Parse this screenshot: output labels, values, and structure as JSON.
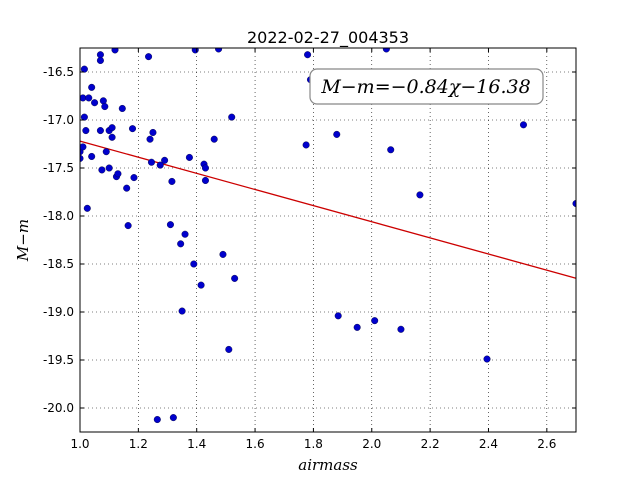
{
  "chart_data": {
    "type": "scatter",
    "title": "2022-02-27_004353",
    "xlabel": "airmass",
    "ylabel": "M−m",
    "xlim": [
      1.0,
      2.7
    ],
    "ylim": [
      -16.25,
      -20.25
    ],
    "y_inverted": true,
    "grid": true,
    "x_ticks": [
      "1.0",
      "1.2",
      "1.4",
      "1.6",
      "1.8",
      "2.0",
      "2.2",
      "2.4",
      "2.6"
    ],
    "y_ticks": [
      "-16.5",
      "-17.0",
      "-17.5",
      "-18.0",
      "-18.5",
      "-19.0",
      "-19.5",
      "-20.0"
    ],
    "annotation": "M−m=−0.84χ−16.38",
    "fit": {
      "slope": -0.84,
      "intercept": -16.38,
      "color": "#cc0000"
    },
    "point_color": "#0000cc",
    "points": [
      [
        1.0,
        -17.33
      ],
      [
        1.0,
        -17.4
      ],
      [
        1.01,
        -17.28
      ],
      [
        1.01,
        -16.77
      ],
      [
        1.015,
        -16.47
      ],
      [
        1.015,
        -16.97
      ],
      [
        1.02,
        -17.11
      ],
      [
        1.025,
        -17.92
      ],
      [
        1.03,
        -16.77
      ],
      [
        1.04,
        -16.66
      ],
      [
        1.04,
        -17.38
      ],
      [
        1.05,
        -16.82
      ],
      [
        1.07,
        -16.32
      ],
      [
        1.07,
        -16.38
      ],
      [
        1.07,
        -17.11
      ],
      [
        1.075,
        -17.52
      ],
      [
        1.08,
        -16.8
      ],
      [
        1.085,
        -16.86
      ],
      [
        1.09,
        -17.33
      ],
      [
        1.1,
        -17.11
      ],
      [
        1.1,
        -17.5
      ],
      [
        1.11,
        -17.18
      ],
      [
        1.11,
        -17.08
      ],
      [
        1.12,
        -16.27
      ],
      [
        1.125,
        -17.59
      ],
      [
        1.13,
        -17.56
      ],
      [
        1.145,
        -16.88
      ],
      [
        1.16,
        -17.71
      ],
      [
        1.165,
        -18.1
      ],
      [
        1.18,
        -17.09
      ],
      [
        1.185,
        -17.6
      ],
      [
        1.235,
        -16.34
      ],
      [
        1.24,
        -17.2
      ],
      [
        1.245,
        -17.44
      ],
      [
        1.25,
        -17.13
      ],
      [
        1.265,
        -20.12
      ],
      [
        1.275,
        -17.47
      ],
      [
        1.29,
        -17.42
      ],
      [
        1.31,
        -18.09
      ],
      [
        1.315,
        -17.64
      ],
      [
        1.32,
        -20.1
      ],
      [
        1.345,
        -18.29
      ],
      [
        1.35,
        -18.99
      ],
      [
        1.36,
        -18.19
      ],
      [
        1.375,
        -17.39
      ],
      [
        1.39,
        -18.5
      ],
      [
        1.395,
        -16.27
      ],
      [
        1.415,
        -18.72
      ],
      [
        1.425,
        -17.46
      ],
      [
        1.43,
        -17.5
      ],
      [
        1.43,
        -17.63
      ],
      [
        1.46,
        -17.2
      ],
      [
        1.475,
        -16.26
      ],
      [
        1.49,
        -18.4
      ],
      [
        1.51,
        -19.39
      ],
      [
        1.52,
        -16.97
      ],
      [
        1.53,
        -18.65
      ],
      [
        1.775,
        -17.26
      ],
      [
        1.78,
        -16.32
      ],
      [
        1.79,
        -16.58
      ],
      [
        1.88,
        -17.15
      ],
      [
        1.885,
        -19.04
      ],
      [
        1.95,
        -19.16
      ],
      [
        2.01,
        -19.09
      ],
      [
        2.05,
        -16.26
      ],
      [
        2.065,
        -17.31
      ],
      [
        2.1,
        -19.18
      ],
      [
        2.165,
        -17.78
      ],
      [
        2.395,
        -19.49
      ],
      [
        2.52,
        -17.05
      ],
      [
        2.7,
        -17.87
      ]
    ]
  }
}
